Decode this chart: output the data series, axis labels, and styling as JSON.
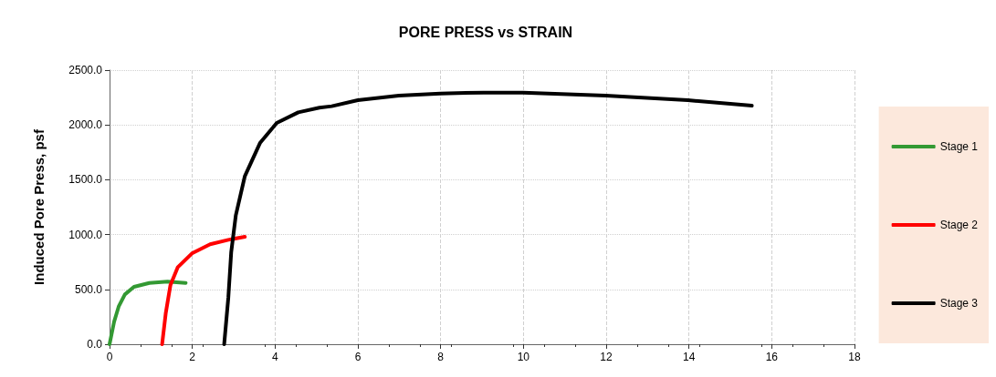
{
  "chart_data": {
    "type": "line",
    "title": "PORE PRESS vs STRAIN",
    "ylabel": "Induced Pore Press, psf",
    "xlim": [
      0,
      18
    ],
    "xticks": [
      0,
      2,
      4,
      6,
      8,
      10,
      12,
      14,
      16,
      18
    ],
    "ylim": [
      0,
      2500
    ],
    "yticks": [
      {
        "value": 0,
        "label": "0.0"
      },
      {
        "value": 500,
        "label": "500.0"
      },
      {
        "value": 1000,
        "label": "1000.0"
      },
      {
        "value": 1500,
        "label": "1500.0"
      },
      {
        "value": 2000,
        "label": "2000.0"
      },
      {
        "value": 2500,
        "label": "2500.0"
      }
    ],
    "grid": true,
    "legend": "right",
    "marker": "none",
    "line_style": "solid",
    "series": [
      {
        "name": "Stage 1",
        "color": "#339933",
        "x": [
          0,
          0.11,
          0.22,
          0.37,
          0.59,
          0.96,
          1.4,
          1.84
        ],
        "values": [
          0,
          205,
          343,
          454,
          523,
          559,
          571,
          559
        ]
      },
      {
        "name": "Stage 2",
        "color": "#ff0000",
        "x": [
          1.27,
          1.36,
          1.47,
          1.65,
          1.99,
          2.43,
          2.87,
          3.27
        ],
        "values": [
          0,
          288,
          537,
          703,
          828,
          911,
          952,
          980
        ]
      },
      {
        "name": "Stage 3",
        "color": "#000000",
        "x": [
          2.77,
          2.87,
          2.94,
          3.05,
          3.27,
          3.64,
          4.04,
          4.56,
          5.07,
          5.37,
          6.0,
          6.99,
          7.99,
          9.04,
          9.99,
          11.99,
          13.97,
          15.52
        ],
        "values": [
          0,
          426,
          841,
          1174,
          1534,
          1838,
          2018,
          2115,
          2157,
          2171,
          2226,
          2267,
          2287,
          2295,
          2295,
          2267,
          2226,
          2176
        ]
      }
    ]
  }
}
